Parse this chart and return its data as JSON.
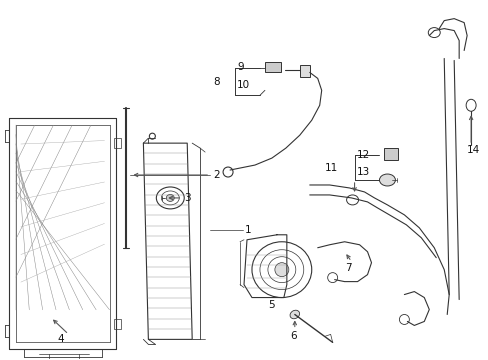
{
  "bg_color": "#ffffff",
  "fig_width": 4.89,
  "fig_height": 3.6,
  "dpi": 100,
  "lc": "#333333",
  "lc_light": "#666666",
  "lc_gray": "#999999",
  "fs": 7.5,
  "tc": "#111111"
}
